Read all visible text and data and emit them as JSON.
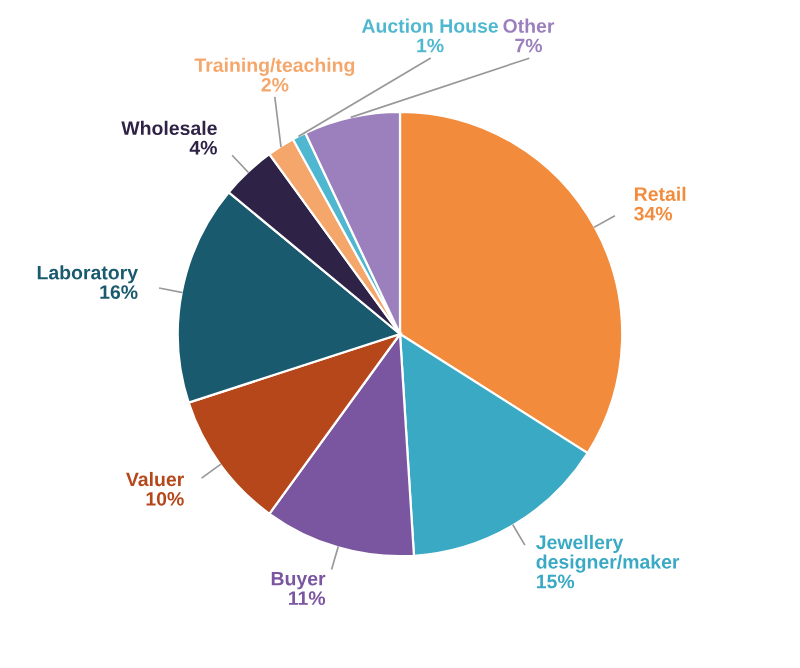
{
  "chart_data": {
    "type": "pie",
    "categories": [
      "Retail",
      "Jewellery designer/maker",
      "Buyer",
      "Valuer",
      "Laboratory",
      "Wholesale",
      "Training/teaching",
      "Auction House",
      "Other"
    ],
    "values": [
      34,
      15,
      11,
      10,
      16,
      4,
      2,
      1,
      7
    ],
    "value_labels": [
      "34%",
      "15%",
      "11%",
      "10%",
      "16%",
      "4%",
      "2%",
      "1%",
      "7%"
    ],
    "colors": [
      "#f28c3c",
      "#3aa9c4",
      "#7a56a0",
      "#b5471a",
      "#1a5a6e",
      "#2e2346",
      "#f5a66a",
      "#4fb8d0",
      "#9b80bd"
    ],
    "legend": false
  }
}
